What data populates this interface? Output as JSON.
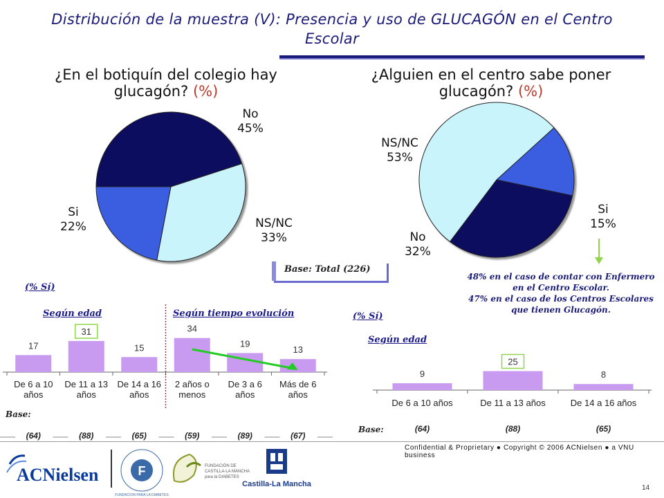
{
  "title": "Distribución de la muestra (V): Presencia y uso de GLUCAGÓN en el Centro Escolar",
  "left_question": {
    "text": "¿En el botiquín del colegio hay glucagón?",
    "unit": "(%)"
  },
  "right_question": {
    "text": "¿Alguien en el centro sabe poner glucagón?",
    "unit": "(%)"
  },
  "base_total": "Base: Total (226)",
  "note": [
    "48% en el caso de contar con Enfermero",
    "en el Centro Escolar.",
    "47% en el caso de los Centros Escolares",
    "que tienen Glucagón."
  ],
  "left_bars": {
    "pct_si": "(% Sí)",
    "edad_label": "Según edad",
    "tiempo_label": "Según tiempo evolución",
    "base_label": "Base:"
  },
  "right_bars": {
    "pct_si": "(% Sí)",
    "edad_label": "Según edad",
    "base_label": "Base:"
  },
  "footer": {
    "confidential": "Confidential & Proprietary ● Copyright © 2006 ACNielsen ● a VNU business",
    "page": "14"
  },
  "logos": {
    "acnielsen": "ACNielsen",
    "fundacion": "FUNDACION PARA LA DIABETES",
    "diabetes_clm": "FUNDACIÓN DE CASTILLA-LA MANCHA para la DIABETES",
    "castilla": "Castilla-La Mancha"
  },
  "colors": {
    "dark": "#0b0b5e",
    "mid": "#3355dd",
    "light": "#c9f4fb",
    "bar": "#c99bf0",
    "highlight": "#8fd64a",
    "arrow": "#22cc22"
  },
  "chart_data": [
    {
      "type": "pie",
      "title": "¿En el botiquín del colegio hay glucagón? (%)",
      "labels": [
        "No",
        "NS/NC",
        "Si"
      ],
      "values": [
        45,
        33,
        22
      ],
      "colors": [
        "#0b0b5e",
        "#c9f4fb",
        "#3a5de0"
      ]
    },
    {
      "type": "pie",
      "title": "¿Alguien en el centro sabe poner glucagón? (%)",
      "labels": [
        "NS/NC",
        "Si",
        "No"
      ],
      "values": [
        53,
        15,
        32
      ],
      "colors": [
        "#c9f4fb",
        "#3a5de0",
        "#0b0b5e"
      ]
    },
    {
      "type": "bar",
      "title": "(% Sí)",
      "categories": [
        "De 6 a 10 años",
        "De 11 a 13 años",
        "De 14 a 16 años",
        "2 años o menos",
        "De 3 a 6 años",
        "Más de 6 años"
      ],
      "values": [
        17,
        31,
        15,
        34,
        19,
        13
      ],
      "groups": [
        "Según edad",
        "Según edad",
        "Según edad",
        "Según tiempo evolución",
        "Según tiempo evolución",
        "Según tiempo evolución"
      ],
      "bases": [
        "(64)",
        "(88)",
        "(65)",
        "(59)",
        "(89)",
        "(67)"
      ],
      "highlight": [
        1
      ],
      "ylim": [
        0,
        40
      ]
    },
    {
      "type": "bar",
      "title": "(% Sí)",
      "categories": [
        "De 6 a 10 años",
        "De 11 a 13 años",
        "De 14 a 16 años"
      ],
      "values": [
        9,
        25,
        8
      ],
      "groups": [
        "Según edad",
        "Según edad",
        "Según edad"
      ],
      "bases": [
        "(64)",
        "(88)",
        "(65)"
      ],
      "highlight": [
        1
      ],
      "ylim": [
        0,
        30
      ]
    }
  ]
}
